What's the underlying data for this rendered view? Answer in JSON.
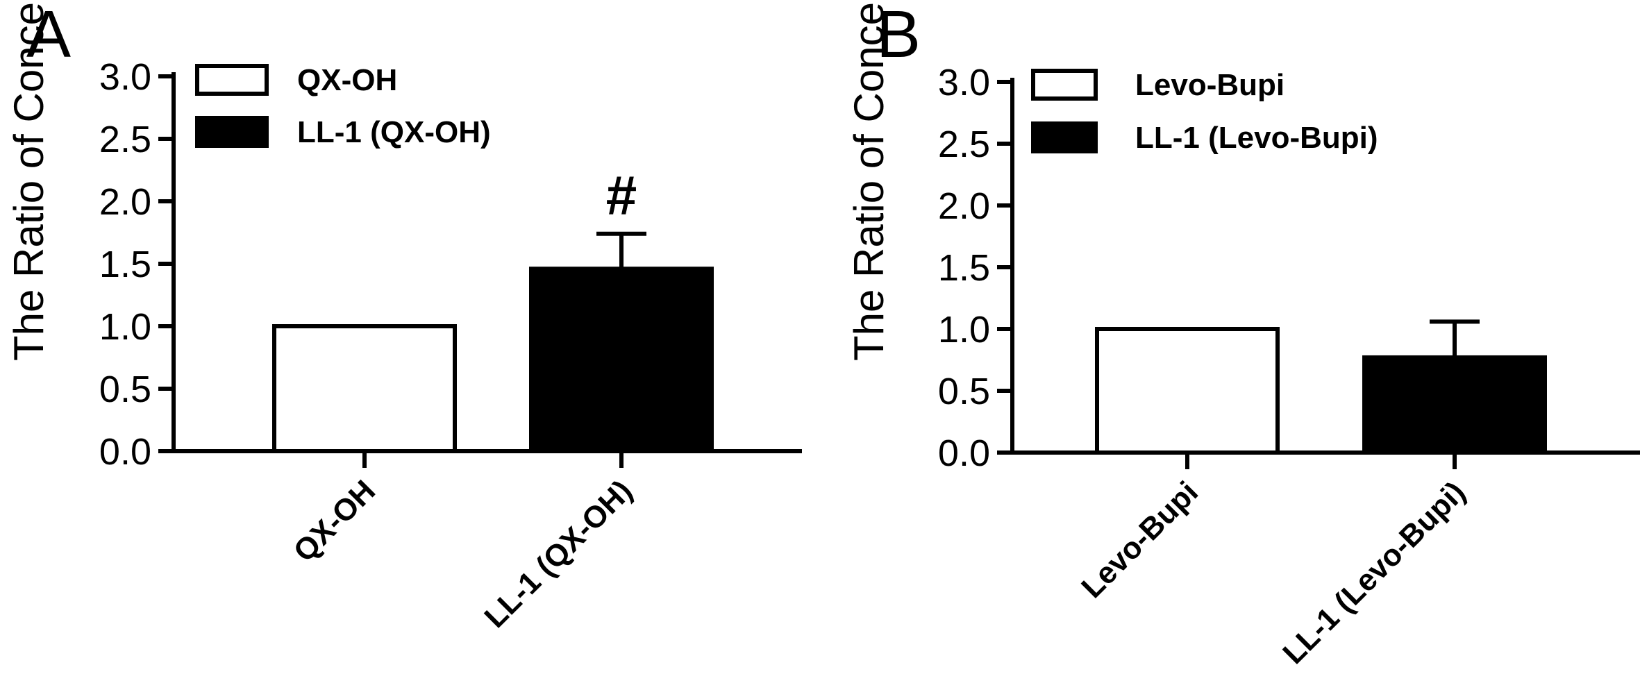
{
  "chart_data": [
    {
      "type": "bar",
      "panel": "A",
      "categories": [
        "QX-OH",
        "LL-1 (QX-OH)"
      ],
      "series": [
        {
          "name": "QX-OH",
          "category": "QX-OH",
          "value": 1.0,
          "error": 0,
          "fill": "#ffffff"
        },
        {
          "name": "LL-1 (QX-OH)",
          "category": "LL-1 (QX-OH)",
          "value": 1.46,
          "error": 0.28,
          "fill": "#000000"
        }
      ],
      "ylabel": "The Ratio of Concentration",
      "ylim": [
        0,
        3.0
      ],
      "yticks": [
        "0.0",
        "0.5",
        "1.0",
        "1.5",
        "2.0",
        "2.5",
        "3.0"
      ],
      "annotations": [
        {
          "category": "LL-1 (QX-OH)",
          "text": "#"
        }
      ],
      "legend": {
        "placement": "top-left",
        "entries": [
          "QX-OH",
          "LL-1 (QX-OH)"
        ]
      },
      "grid": false
    },
    {
      "type": "bar",
      "panel": "B",
      "categories": [
        "Levo-Bupi",
        "LL-1 (Levo-Bupi)"
      ],
      "series": [
        {
          "name": "Levo-Bupi",
          "category": "Levo-Bupi",
          "value": 1.0,
          "error": 0,
          "fill": "#ffffff"
        },
        {
          "name": "LL-1 (Levo-Bupi)",
          "category": "LL-1 (Levo-Bupi)",
          "value": 0.77,
          "error": 0.29,
          "fill": "#000000"
        }
      ],
      "ylabel": "The Ratio of Concentration",
      "ylim": [
        0,
        3.0
      ],
      "yticks": [
        "0.0",
        "0.5",
        "1.0",
        "1.5",
        "2.0",
        "2.5",
        "3.0"
      ],
      "annotations": [],
      "legend": {
        "placement": "top-left",
        "entries": [
          "Levo-Bupi",
          "LL-1 (Levo-Bupi)"
        ]
      },
      "grid": false
    }
  ]
}
